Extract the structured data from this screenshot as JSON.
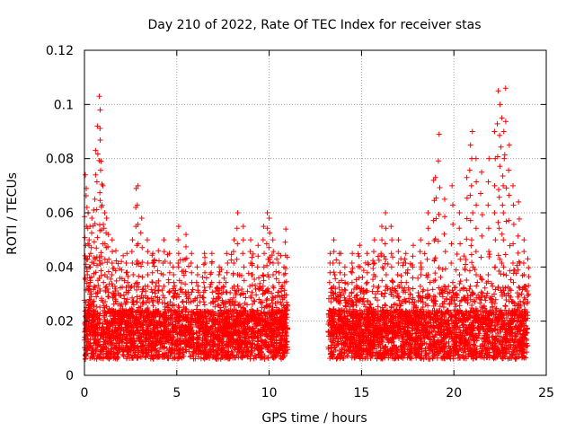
{
  "chart_data": {
    "type": "scatter",
    "title": "Day 210 of 2022, Rate Of TEC Index for receiver stas",
    "xlabel": "GPS time / hours",
    "ylabel": "ROTI / TECUs",
    "xlim": [
      0,
      25
    ],
    "ylim": [
      0,
      0.12
    ],
    "x_ticks": [
      0,
      5,
      10,
      15,
      20,
      25
    ],
    "x_tick_labels": [
      "0",
      "5",
      "10",
      "15",
      "20",
      "25"
    ],
    "y_ticks": [
      0,
      0.02,
      0.04,
      0.06,
      0.08,
      0.1,
      0.12
    ],
    "y_tick_labels": [
      "0",
      "0.02",
      "0.04",
      "0.06",
      "0.08",
      "0.1",
      "0.12"
    ],
    "grid": true,
    "marker": "plus",
    "marker_color": "#ff0000",
    "data_gap_hours": [
      11.0,
      13.2
    ],
    "series": [
      {
        "x": [
          0.05,
          0.1,
          0.2,
          0.25,
          0.3,
          0.4,
          0.5,
          0.6,
          0.7,
          0.8,
          0.85,
          0.9,
          1.0,
          1.1,
          1.2,
          1.3,
          1.5,
          1.7,
          2.0,
          2.3,
          2.6,
          2.8,
          2.9,
          3.1,
          3.4,
          3.7,
          4.0,
          4.3,
          4.6,
          4.8,
          5.1,
          5.5,
          5.8,
          6.1,
          6.5,
          6.9,
          7.3,
          7.7,
          8.1,
          8.3,
          8.6,
          9.0,
          9.4,
          9.7,
          9.9,
          10.0,
          10.2,
          10.5,
          10.8,
          10.9,
          13.3,
          13.5,
          13.8,
          14.1,
          14.5,
          14.9,
          15.3,
          15.7,
          16.1,
          16.3,
          16.6,
          17.0,
          17.4,
          17.8,
          18.2,
          18.6,
          18.9,
          19.0,
          19.2,
          19.5,
          19.9,
          20.3,
          20.7,
          20.9,
          21.0,
          21.2,
          21.5,
          21.9,
          22.2,
          22.4,
          22.5,
          22.6,
          22.7,
          22.8,
          23.0,
          23.2,
          23.5,
          23.8,
          24.0
        ],
        "y": [
          0.074,
          0.069,
          0.06,
          0.048,
          0.055,
          0.058,
          0.061,
          0.083,
          0.092,
          0.103,
          0.098,
          0.079,
          0.07,
          0.06,
          0.058,
          0.052,
          0.05,
          0.046,
          0.042,
          0.045,
          0.05,
          0.069,
          0.07,
          0.058,
          0.05,
          0.045,
          0.046,
          0.05,
          0.045,
          0.04,
          0.055,
          0.052,
          0.045,
          0.04,
          0.045,
          0.045,
          0.04,
          0.045,
          0.05,
          0.06,
          0.055,
          0.05,
          0.048,
          0.055,
          0.06,
          0.058,
          0.05,
          0.045,
          0.04,
          0.054,
          0.045,
          0.05,
          0.045,
          0.04,
          0.045,
          0.048,
          0.045,
          0.05,
          0.055,
          0.06,
          0.055,
          0.05,
          0.045,
          0.048,
          0.05,
          0.06,
          0.072,
          0.073,
          0.089,
          0.065,
          0.07,
          0.06,
          0.073,
          0.085,
          0.09,
          0.08,
          0.075,
          0.08,
          0.09,
          0.105,
          0.1,
          0.095,
          0.09,
          0.106,
          0.085,
          0.07,
          0.064,
          0.05,
          0.043
        ]
      }
    ]
  }
}
